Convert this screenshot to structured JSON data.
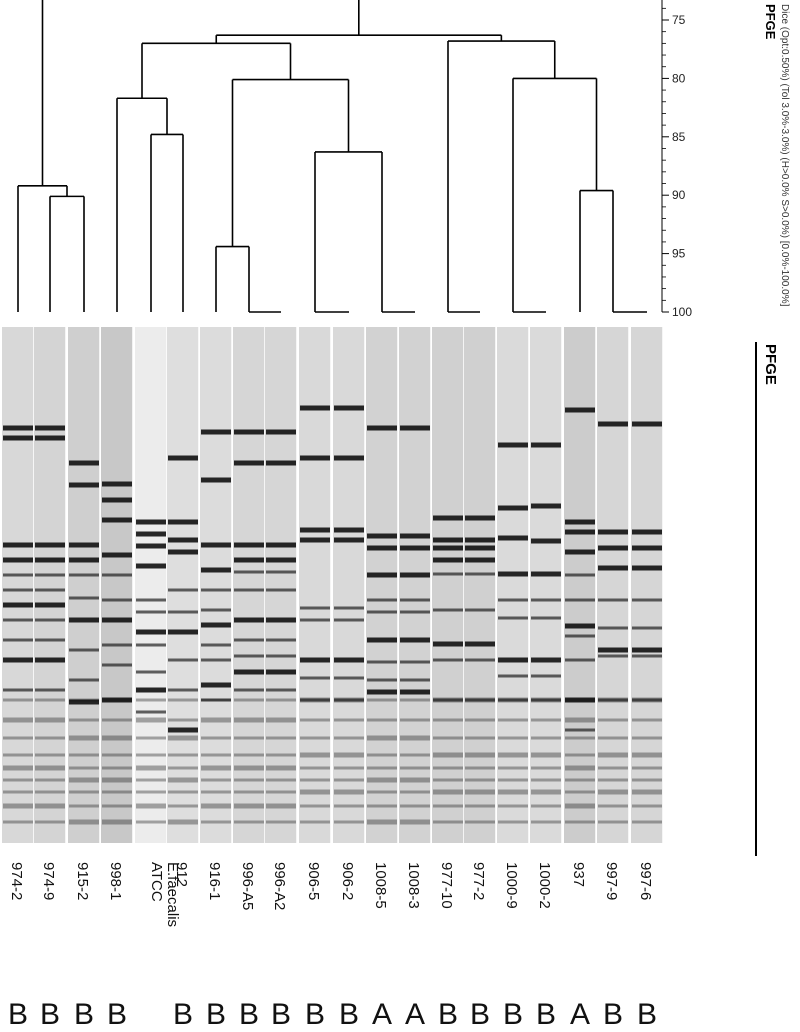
{
  "figure": {
    "dendrogram_title": "PFGE",
    "gel_title": "PFGE",
    "method_text": "Dice (Opt:0.50%) (Tol 3.0%-3.0%) (H>0.0% S>0.0%) [0.0%-100.0%]",
    "scale": {
      "ticks": [
        "75",
        "80",
        "85",
        "90",
        "95",
        "100"
      ],
      "tick_values": [
        75,
        80,
        85,
        90,
        95,
        100
      ]
    }
  },
  "lanes": [
    {
      "id": "974-2",
      "group": "B"
    },
    {
      "id": "974-9",
      "group": "B"
    },
    {
      "id": "915-2",
      "group": "B"
    },
    {
      "id": "998-1",
      "group": "B"
    },
    {
      "id": "ATCC E.faecalis",
      "group": ""
    },
    {
      "id": "912",
      "group": "B"
    },
    {
      "id": "916-1",
      "group": "B"
    },
    {
      "id": "996-A5",
      "group": "B"
    },
    {
      "id": "996-A2",
      "group": "B"
    },
    {
      "id": "906-5",
      "group": "B"
    },
    {
      "id": "906-2",
      "group": "B"
    },
    {
      "id": "1008-5",
      "group": "A"
    },
    {
      "id": "1008-3",
      "group": "A"
    },
    {
      "id": "977-10",
      "group": "B"
    },
    {
      "id": "977-2",
      "group": "B"
    },
    {
      "id": "1000-9",
      "group": "B"
    },
    {
      "id": "1000-2",
      "group": "B"
    },
    {
      "id": "937",
      "group": "A"
    },
    {
      "id": "997-9",
      "group": "B"
    },
    {
      "id": "997-6",
      "group": "B"
    }
  ],
  "similarity_nodes": [
    {
      "value": 89.2
    },
    {
      "value": 90.1
    },
    {
      "value": 94.4
    },
    {
      "value": 86.3
    },
    {
      "value": 80.1
    },
    {
      "value": 84.8
    },
    {
      "value": 81.7
    },
    {
      "value": 77.0
    },
    {
      "value": 89.6
    },
    {
      "value": 80.0
    },
    {
      "value": 76.8
    },
    {
      "value": 76.3
    },
    {
      "value": 75.9
    },
    {
      "value": 72.9
    }
  ]
}
